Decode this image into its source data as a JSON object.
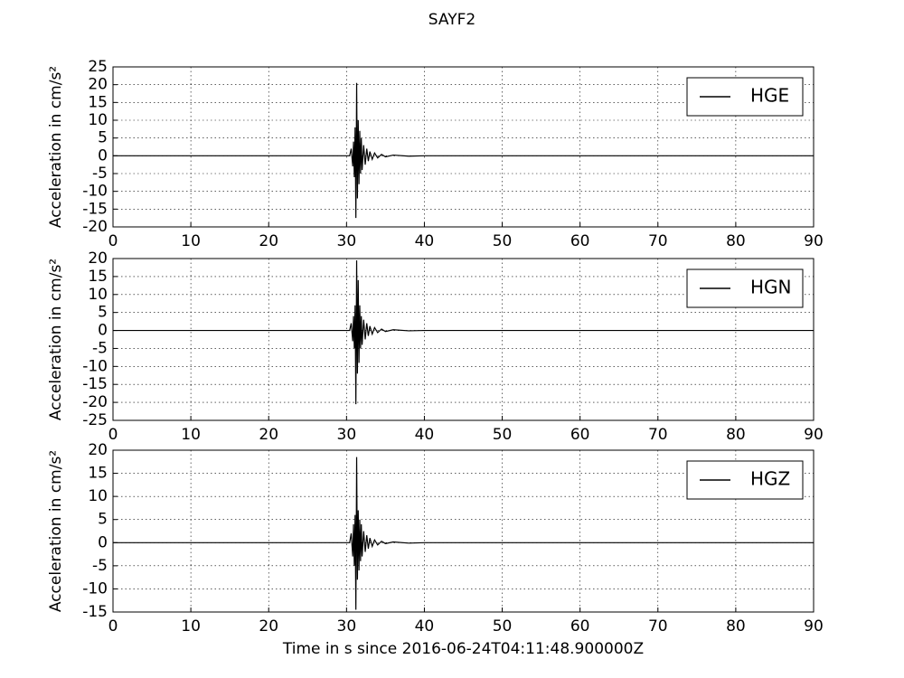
{
  "title": "SAYF2",
  "chart_data": [
    {
      "type": "line",
      "ylabel": "Acceleration in cm/s²",
      "legend": "upper right",
      "grid": true,
      "xlim": [
        0,
        90
      ],
      "xticks": [
        0,
        10,
        20,
        30,
        40,
        50,
        60,
        70,
        80,
        90
      ],
      "ylim": [
        -20,
        25
      ],
      "yticks": [
        -20,
        -15,
        -10,
        -5,
        0,
        5,
        10,
        15,
        20,
        25
      ],
      "x": [
        0,
        30.4,
        30.6,
        30.8,
        30.9,
        31.0,
        31.1,
        31.2,
        31.3,
        31.4,
        31.5,
        31.6,
        31.7,
        31.8,
        31.9,
        32.0,
        32.2,
        32.4,
        32.6,
        32.8,
        33.0,
        33.3,
        33.6,
        34.0,
        34.5,
        35,
        36,
        38,
        40,
        90
      ],
      "series": [
        {
          "name": "HGE",
          "color": "#000000",
          "values": [
            0,
            0,
            2,
            -3,
            4,
            -6,
            8,
            -17.5,
            20.5,
            -12,
            10,
            -8,
            7,
            -5,
            5,
            -4,
            3,
            -2.5,
            2,
            -1.5,
            1.2,
            -1,
            0.8,
            -0.6,
            0.4,
            -0.3,
            0.2,
            -0.1,
            0,
            0
          ]
        }
      ]
    },
    {
      "type": "line",
      "ylabel": "Acceleration in cm/s²",
      "legend": "upper right",
      "grid": true,
      "xlim": [
        0,
        90
      ],
      "xticks": [
        0,
        10,
        20,
        30,
        40,
        50,
        60,
        70,
        80,
        90
      ],
      "ylim": [
        -25,
        20
      ],
      "yticks": [
        -25,
        -20,
        -15,
        -10,
        -5,
        0,
        5,
        10,
        15,
        20
      ],
      "x": [
        0,
        30.4,
        30.6,
        30.8,
        30.9,
        31.0,
        31.1,
        31.2,
        31.3,
        31.4,
        31.5,
        31.6,
        31.7,
        31.8,
        31.9,
        32.0,
        32.2,
        32.4,
        32.6,
        32.8,
        33.0,
        33.3,
        33.6,
        34.0,
        34.5,
        35,
        36,
        38,
        40,
        90
      ],
      "series": [
        {
          "name": "HGN",
          "color": "#000000",
          "values": [
            0,
            0,
            2,
            -3,
            4,
            -5,
            7,
            -20.5,
            19.5,
            -12,
            14,
            -9,
            7,
            -5,
            4,
            -4,
            3,
            -2.5,
            2,
            -1.5,
            1.2,
            -1,
            0.8,
            -0.6,
            0.4,
            -0.3,
            0.2,
            -0.1,
            0,
            0
          ]
        }
      ]
    },
    {
      "type": "line",
      "ylabel": "Acceleration in cm/s²",
      "legend": "upper right",
      "grid": true,
      "xlim": [
        0,
        90
      ],
      "xticks": [
        0,
        10,
        20,
        30,
        40,
        50,
        60,
        70,
        80,
        90
      ],
      "ylim": [
        -15,
        20
      ],
      "yticks": [
        -15,
        -10,
        -5,
        0,
        5,
        10,
        15,
        20
      ],
      "xlabel": "Time in s since  2016-06-24T04:11:48.900000Z",
      "x": [
        0,
        30.4,
        30.6,
        30.8,
        30.9,
        31.0,
        31.1,
        31.2,
        31.3,
        31.4,
        31.5,
        31.6,
        31.7,
        31.8,
        31.9,
        32.0,
        32.2,
        32.4,
        32.6,
        32.8,
        33.0,
        33.3,
        33.6,
        34.0,
        34.5,
        35,
        36,
        38,
        40,
        90
      ],
      "series": [
        {
          "name": "HGZ",
          "color": "#000000",
          "values": [
            0,
            0,
            2,
            -3,
            4,
            -5,
            6,
            -14.5,
            18.5,
            -8,
            7,
            -6,
            5,
            -4,
            4,
            -3,
            2.5,
            -2,
            1.6,
            -1.3,
            1,
            -0.8,
            0.6,
            -0.5,
            0.3,
            -0.2,
            0.15,
            -0.1,
            0,
            0
          ]
        }
      ]
    }
  ]
}
